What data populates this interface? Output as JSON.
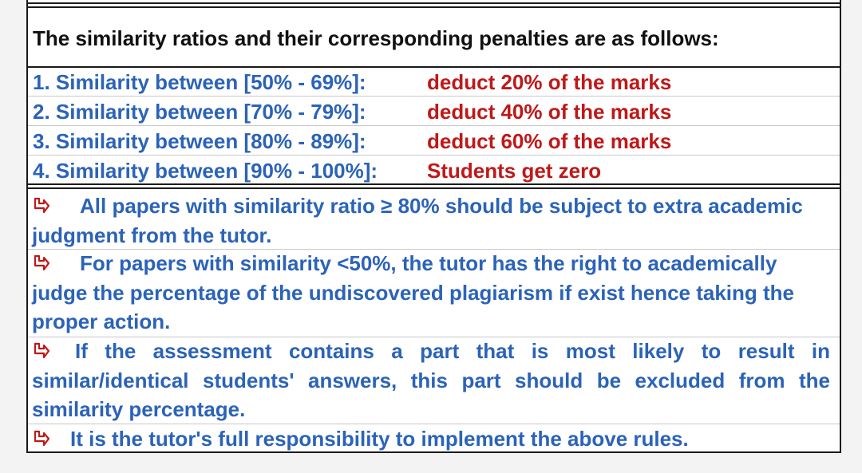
{
  "heading": "The similarity ratios and their corresponding penalties are as follows:",
  "penalties": [
    {
      "range": "1. Similarity between [50% - 69%]:",
      "penalty": "deduct 20% of the marks"
    },
    {
      "range": "2. Similarity between [70% - 79%]:",
      "penalty": "deduct 40% of the marks"
    },
    {
      "range": "3. Similarity between [80% - 89%]:",
      "penalty": "deduct 60% of the marks"
    },
    {
      "range": "4. Similarity between [90% - 100%]:",
      "penalty": "Students get zero"
    }
  ],
  "notes": [
    "All papers with similarity ratio ≥ 80% should be subject to extra academic judgment from the tutor.",
    "For papers with similarity <50%, the tutor has the right to academically judge the percentage of the undiscovered plagiarism if exist hence taking the proper action.",
    "If the assessment contains a part that is most likely to result in similar/identical students' answers, this part should be excluded from the similarity percentage.",
    "It is the tutor's full responsibility to implement the above rules."
  ],
  "colors": {
    "heading": "#111111",
    "range": "#2b63b8",
    "penalty": "#c01818",
    "note": "#2b63b8",
    "bullet": "#c01818"
  },
  "bullet_icon": "arrow-bullet-icon"
}
